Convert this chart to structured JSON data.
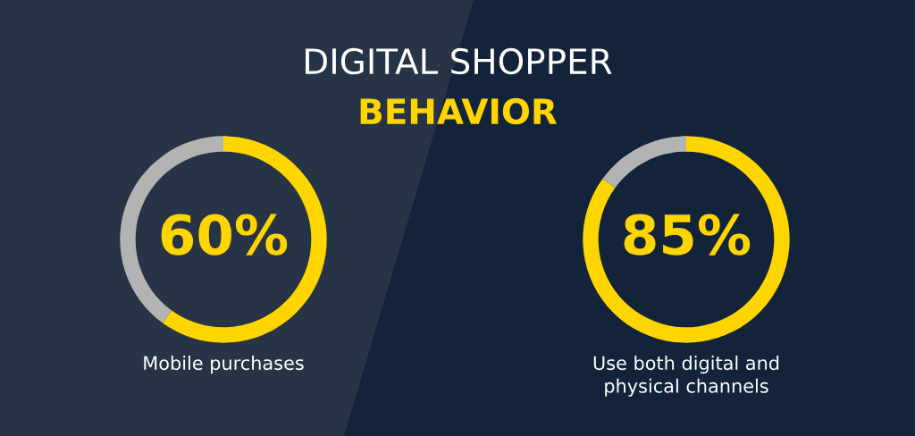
{
  "chart_data": [
    {
      "type": "donut",
      "title": "DIGITAL SHOPPER",
      "subtitle": "BEHAVIOR",
      "categories": [
        null,
        null
      ],
      "values": [
        60,
        40
      ],
      "colors": [
        "#ffd500",
        "#b3b3b3"
      ],
      "value_labels": [
        "60%",
        null
      ],
      "xlabel": "Mobile purchases"
    },
    {
      "type": "donut",
      "categories": [
        null,
        null
      ],
      "values": [
        85,
        15
      ],
      "colors": [
        "#ffd500",
        "#b3b3b3"
      ],
      "value_labels": [
        "85%",
        null
      ],
      "xlabel": "Use both digital and\nphysical channels"
    }
  ]
}
